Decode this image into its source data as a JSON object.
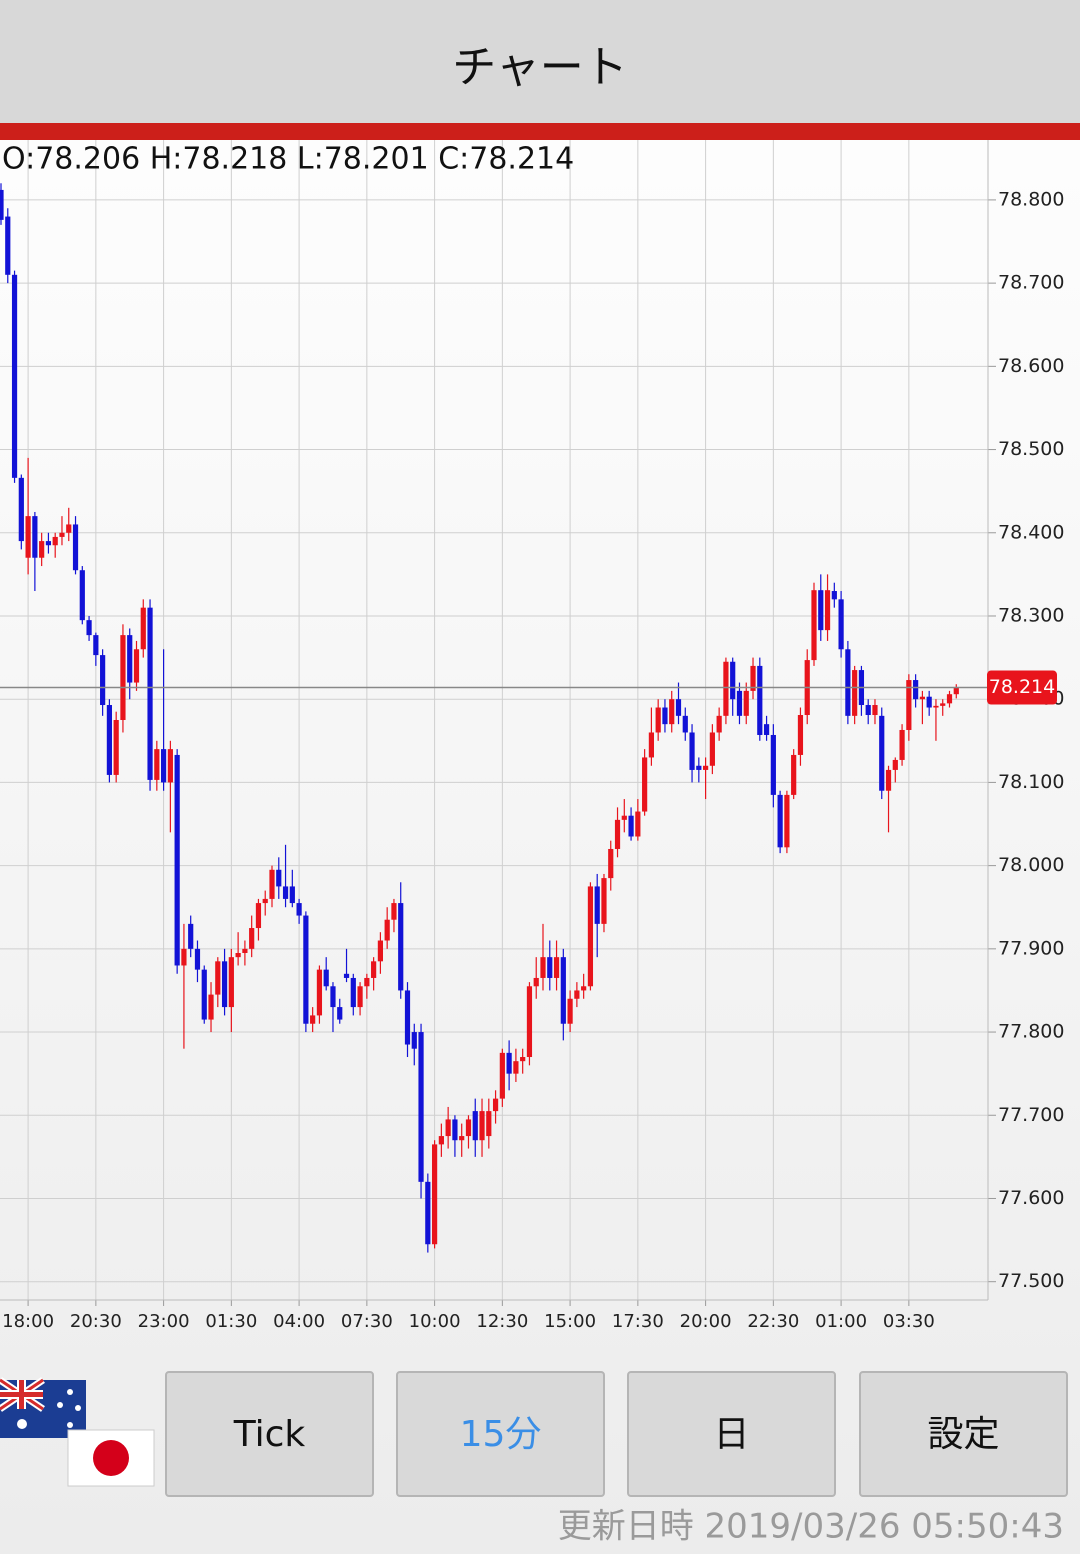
{
  "header": {
    "title": "チャート"
  },
  "chart_data": {
    "type": "candlestick",
    "ohlc_label": "O:78.206 H:78.218 L:78.201 C:78.214",
    "up_color": "#e8141c",
    "down_color": "#1212d6",
    "ylim": [
      77.478,
      78.872
    ],
    "yticks": [
      {
        "value": 77.5,
        "label": "77.500"
      },
      {
        "value": 77.6,
        "label": "77.600"
      },
      {
        "value": 77.7,
        "label": "77.700"
      },
      {
        "value": 77.8,
        "label": "77.800"
      },
      {
        "value": 77.9,
        "label": "77.900"
      },
      {
        "value": 78.0,
        "label": "78.000"
      },
      {
        "value": 78.1,
        "label": "78.100"
      },
      {
        "value": 78.2,
        "label": "78.200"
      },
      {
        "value": 78.3,
        "label": "78.300"
      },
      {
        "value": 78.4,
        "label": "78.400"
      },
      {
        "value": 78.5,
        "label": "78.500"
      },
      {
        "value": 78.6,
        "label": "78.600"
      },
      {
        "value": 78.7,
        "label": "78.700"
      },
      {
        "value": 78.8,
        "label": "78.800"
      }
    ],
    "grid": true,
    "current_price": 78.214,
    "current_price_color": "#e8141c",
    "x": [
      null,
      null,
      null,
      null,
      "18:00",
      null,
      null,
      null,
      null,
      null,
      null,
      null,
      null,
      null,
      "20:30",
      null,
      null,
      null,
      null,
      null,
      null,
      null,
      null,
      null,
      "23:00",
      null,
      null,
      null,
      null,
      null,
      null,
      null,
      null,
      null,
      "01:30",
      null,
      null,
      null,
      null,
      null,
      null,
      null,
      null,
      null,
      "04:00",
      null,
      null,
      null,
      null,
      null,
      null,
      null,
      null,
      null,
      "07:30",
      null,
      null,
      null,
      null,
      null,
      null,
      null,
      null,
      null,
      "10:00",
      null,
      null,
      null,
      null,
      null,
      null,
      null,
      null,
      null,
      "12:30",
      null,
      null,
      null,
      null,
      null,
      null,
      null,
      null,
      null,
      "15:00",
      null,
      null,
      null,
      null,
      null,
      null,
      null,
      null,
      null,
      "17:30",
      null,
      null,
      null,
      null,
      null,
      null,
      null,
      null,
      null,
      "20:00",
      null,
      null,
      null,
      null,
      null,
      null,
      null,
      null,
      null,
      "22:30",
      null,
      null,
      null,
      null,
      null,
      null,
      null,
      null,
      null,
      "01:00",
      null,
      null,
      null,
      null,
      null,
      null,
      null,
      null,
      null,
      "03:30",
      null,
      null,
      null,
      null,
      null,
      null,
      null
    ],
    "ohlc": [
      [
        78.812,
        78.82,
        78.77,
        78.776
      ],
      [
        78.78,
        78.79,
        78.7,
        78.71
      ],
      [
        78.71,
        78.715,
        78.46,
        78.466
      ],
      [
        78.466,
        78.47,
        78.38,
        78.39
      ],
      [
        78.37,
        78.49,
        78.35,
        78.42
      ],
      [
        78.42,
        78.425,
        78.33,
        78.37
      ],
      [
        78.37,
        78.4,
        78.36,
        78.39
      ],
      [
        78.39,
        78.4,
        78.375,
        78.385
      ],
      [
        78.385,
        78.4,
        78.37,
        78.395
      ],
      [
        78.395,
        78.42,
        78.385,
        78.4
      ],
      [
        78.4,
        78.43,
        78.39,
        78.41
      ],
      [
        78.41,
        78.42,
        78.35,
        78.355
      ],
      [
        78.355,
        78.36,
        78.29,
        78.295
      ],
      [
        78.295,
        78.3,
        78.27,
        78.277
      ],
      [
        78.277,
        78.28,
        78.24,
        78.253
      ],
      [
        78.253,
        78.26,
        78.18,
        78.193
      ],
      [
        78.193,
        78.2,
        78.1,
        78.109
      ],
      [
        78.109,
        78.185,
        78.1,
        78.175
      ],
      [
        78.175,
        78.29,
        78.16,
        78.277
      ],
      [
        78.277,
        78.285,
        78.2,
        78.22
      ],
      [
        78.22,
        78.27,
        78.21,
        78.26
      ],
      [
        78.26,
        78.32,
        78.25,
        78.31
      ],
      [
        78.31,
        78.32,
        78.09,
        78.103
      ],
      [
        78.103,
        78.15,
        78.09,
        78.14
      ],
      [
        78.14,
        78.26,
        78.09,
        78.1
      ],
      [
        78.1,
        78.15,
        78.04,
        78.14
      ],
      [
        78.133,
        78.14,
        77.87,
        77.88
      ],
      [
        77.88,
        77.93,
        77.78,
        77.9
      ],
      [
        77.93,
        77.94,
        77.89,
        77.9
      ],
      [
        77.9,
        77.91,
        77.86,
        77.875
      ],
      [
        77.875,
        77.88,
        77.81,
        77.815
      ],
      [
        77.815,
        77.86,
        77.8,
        77.845
      ],
      [
        77.845,
        77.89,
        77.83,
        77.885
      ],
      [
        77.885,
        77.9,
        77.82,
        77.83
      ],
      [
        77.83,
        77.9,
        77.8,
        77.89
      ],
      [
        77.89,
        77.92,
        77.88,
        77.895
      ],
      [
        77.895,
        77.91,
        77.88,
        77.9
      ],
      [
        77.9,
        77.94,
        77.89,
        77.925
      ],
      [
        77.925,
        77.96,
        77.91,
        77.955
      ],
      [
        77.955,
        77.97,
        77.94,
        77.96
      ],
      [
        77.96,
        78.0,
        77.95,
        77.995
      ],
      [
        77.995,
        78.01,
        77.96,
        77.975
      ],
      [
        77.975,
        78.025,
        77.95,
        77.96
      ],
      [
        77.975,
        77.995,
        77.95,
        77.955
      ],
      [
        77.955,
        77.96,
        77.93,
        77.94
      ],
      [
        77.94,
        77.945,
        77.8,
        77.81
      ],
      [
        77.81,
        77.83,
        77.8,
        77.82
      ],
      [
        77.82,
        77.88,
        77.81,
        77.875
      ],
      [
        77.875,
        77.89,
        77.85,
        77.855
      ],
      [
        77.855,
        77.86,
        77.8,
        77.83
      ],
      [
        77.83,
        77.84,
        77.81,
        77.815
      ],
      [
        77.87,
        77.9,
        77.86,
        77.865
      ],
      [
        77.865,
        77.87,
        77.82,
        77.83
      ],
      [
        77.83,
        77.86,
        77.82,
        77.855
      ],
      [
        77.855,
        77.87,
        77.84,
        77.865
      ],
      [
        77.865,
        77.89,
        77.85,
        77.885
      ],
      [
        77.885,
        77.92,
        77.87,
        77.91
      ],
      [
        77.91,
        77.95,
        77.9,
        77.935
      ],
      [
        77.935,
        77.96,
        77.92,
        77.955
      ],
      [
        77.955,
        77.98,
        77.84,
        77.85
      ],
      [
        77.85,
        77.86,
        77.77,
        77.785
      ],
      [
        77.8,
        77.81,
        77.76,
        77.78
      ],
      [
        77.8,
        77.81,
        77.6,
        77.62
      ],
      [
        77.62,
        77.63,
        77.535,
        77.545
      ],
      [
        77.545,
        77.67,
        77.54,
        77.665
      ],
      [
        77.665,
        77.69,
        77.65,
        77.675
      ],
      [
        77.675,
        77.71,
        77.66,
        77.695
      ],
      [
        77.695,
        77.7,
        77.65,
        77.67
      ],
      [
        77.67,
        77.69,
        77.65,
        77.675
      ],
      [
        77.675,
        77.7,
        77.66,
        77.695
      ],
      [
        77.705,
        77.72,
        77.65,
        77.67
      ],
      [
        77.67,
        77.72,
        77.65,
        77.705
      ],
      [
        77.675,
        77.72,
        77.66,
        77.705
      ],
      [
        77.705,
        77.73,
        77.69,
        77.72
      ],
      [
        77.72,
        77.78,
        77.71,
        77.775
      ],
      [
        77.775,
        77.79,
        77.73,
        77.75
      ],
      [
        77.75,
        77.78,
        77.74,
        77.765
      ],
      [
        77.765,
        77.78,
        77.75,
        77.77
      ],
      [
        77.77,
        77.86,
        77.76,
        77.855
      ],
      [
        77.855,
        77.89,
        77.84,
        77.865
      ],
      [
        77.865,
        77.93,
        77.85,
        77.89
      ],
      [
        77.89,
        77.91,
        77.85,
        77.865
      ],
      [
        77.865,
        77.91,
        77.85,
        77.89
      ],
      [
        77.89,
        77.9,
        77.79,
        77.81
      ],
      [
        77.81,
        77.85,
        77.8,
        77.84
      ],
      [
        77.84,
        77.86,
        77.83,
        77.85
      ],
      [
        77.85,
        77.87,
        77.84,
        77.855
      ],
      [
        77.855,
        77.98,
        77.85,
        77.975
      ],
      [
        77.975,
        77.99,
        77.89,
        77.93
      ],
      [
        77.93,
        77.99,
        77.92,
        77.985
      ],
      [
        77.985,
        78.03,
        77.97,
        78.02
      ],
      [
        78.02,
        78.07,
        78.01,
        78.055
      ],
      [
        78.055,
        78.08,
        78.04,
        78.06
      ],
      [
        78.06,
        78.07,
        78.03,
        78.035
      ],
      [
        78.035,
        78.08,
        78.03,
        78.065
      ],
      [
        78.065,
        78.14,
        78.06,
        78.13
      ],
      [
        78.13,
        78.19,
        78.12,
        78.16
      ],
      [
        78.16,
        78.2,
        78.15,
        78.19
      ],
      [
        78.19,
        78.2,
        78.16,
        78.17
      ],
      [
        78.17,
        78.21,
        78.16,
        78.2
      ],
      [
        78.2,
        78.22,
        78.17,
        78.18
      ],
      [
        78.18,
        78.19,
        78.15,
        78.16
      ],
      [
        78.16,
        78.17,
        78.1,
        78.115
      ],
      [
        78.12,
        78.13,
        78.1,
        78.115
      ],
      [
        78.115,
        78.13,
        78.08,
        78.12
      ],
      [
        78.12,
        78.17,
        78.11,
        78.16
      ],
      [
        78.16,
        78.19,
        78.15,
        78.18
      ],
      [
        78.18,
        78.25,
        78.17,
        78.245
      ],
      [
        78.245,
        78.25,
        78.18,
        78.2
      ],
      [
        78.21,
        78.22,
        78.17,
        78.18
      ],
      [
        78.18,
        78.22,
        78.17,
        78.21
      ],
      [
        78.21,
        78.25,
        78.2,
        78.24
      ],
      [
        78.24,
        78.25,
        78.15,
        78.157
      ],
      [
        78.17,
        78.18,
        78.15,
        78.157
      ],
      [
        78.157,
        78.17,
        78.07,
        78.085
      ],
      [
        78.085,
        78.09,
        78.015,
        78.022
      ],
      [
        78.022,
        78.09,
        78.015,
        78.085
      ],
      [
        78.085,
        78.14,
        78.08,
        78.133
      ],
      [
        78.133,
        78.19,
        78.12,
        78.181
      ],
      [
        78.181,
        78.26,
        78.17,
        78.247
      ],
      [
        78.247,
        78.34,
        78.24,
        78.331
      ],
      [
        78.331,
        78.35,
        78.27,
        78.283
      ],
      [
        78.283,
        78.35,
        78.27,
        78.331
      ],
      [
        78.33,
        78.34,
        78.31,
        78.32
      ],
      [
        78.32,
        78.33,
        78.25,
        78.26
      ],
      [
        78.26,
        78.27,
        78.17,
        78.18
      ],
      [
        78.18,
        78.24,
        78.17,
        78.235
      ],
      [
        78.235,
        78.24,
        78.18,
        78.193
      ],
      [
        78.193,
        78.2,
        78.17,
        78.181
      ],
      [
        78.181,
        78.2,
        78.17,
        78.193
      ],
      [
        78.18,
        78.19,
        78.08,
        78.09
      ],
      [
        78.09,
        78.12,
        78.04,
        78.115
      ],
      [
        78.115,
        78.13,
        78.1,
        78.127
      ],
      [
        78.127,
        78.17,
        78.12,
        78.163
      ],
      [
        78.163,
        78.23,
        78.15,
        78.223
      ],
      [
        78.223,
        78.23,
        78.19,
        78.2
      ],
      [
        78.2,
        78.21,
        78.17,
        78.203
      ],
      [
        78.203,
        78.21,
        78.18,
        78.19
      ],
      [
        78.19,
        78.2,
        78.15,
        78.192
      ],
      [
        78.192,
        78.2,
        78.18,
        78.195
      ],
      [
        78.195,
        78.21,
        78.19,
        78.206
      ],
      [
        78.206,
        78.218,
        78.201,
        78.214
      ]
    ]
  },
  "buttons": [
    {
      "label": "Tick"
    },
    {
      "label": "15分",
      "active": true
    },
    {
      "label": "日"
    },
    {
      "label": "設定"
    }
  ],
  "updated": "更新日時 2019/03/26 05:50:43"
}
